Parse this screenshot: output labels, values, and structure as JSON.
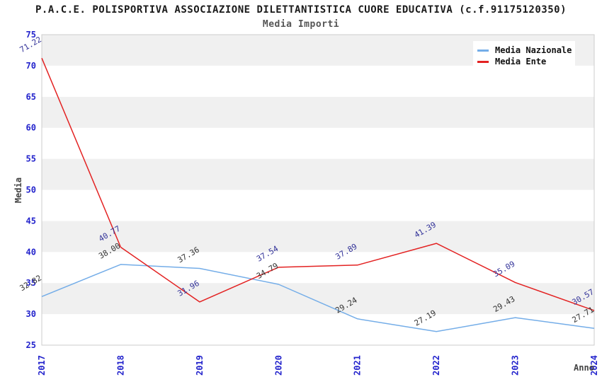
{
  "header": {
    "title": "P.A.C.E. POLISPORTIVA ASSOCIAZIONE DILETTANTISTICA CUORE EDUCATIVA (c.f.91175120350)",
    "subtitle": "Media Importi"
  },
  "legend": {
    "items": [
      {
        "label": "Media Nazionale",
        "color": "#74ade8"
      },
      {
        "label": "Media Ente",
        "color": "#e32222"
      }
    ]
  },
  "chart_data": {
    "type": "line",
    "title": "P.A.C.E. POLISPORTIVA ASSOCIAZIONE DILETTANTISTICA CUORE EDUCATIVA (c.f.91175120350)",
    "subtitle": "Media Importi",
    "xlabel": "Anno",
    "ylabel": "Media",
    "x": [
      "2017",
      "2018",
      "2019",
      "2020",
      "2021",
      "2022",
      "2023",
      "2024"
    ],
    "series": [
      {
        "name": "Media Nazionale",
        "color": "#74ade8",
        "label_color": "#333333",
        "values": [
          32.82,
          38.0,
          37.36,
          34.79,
          29.24,
          27.19,
          29.43,
          27.71
        ]
      },
      {
        "name": "Media Ente",
        "color": "#e32222",
        "label_color": "#333399",
        "values": [
          71.22,
          40.77,
          31.96,
          37.54,
          37.89,
          41.39,
          35.09,
          30.57
        ]
      }
    ],
    "ylim": [
      25,
      75
    ],
    "ytick_step": 5,
    "tick_color": "#2323cc",
    "band_colors": [
      "#ffffff",
      "#f0f0f0"
    ],
    "plot_border_color": "#cccccc",
    "grid": "horizontal-bands",
    "legend_position": "top-right",
    "point_labels_decimals": 2
  }
}
